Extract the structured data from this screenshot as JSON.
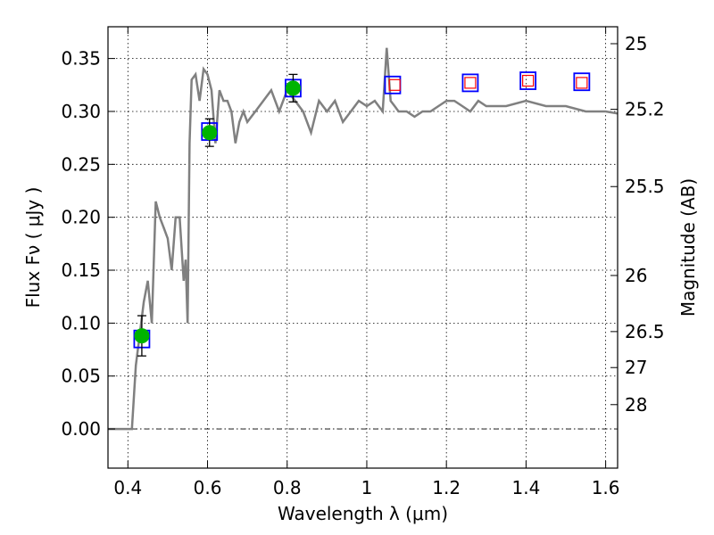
{
  "chart_data": {
    "type": "line",
    "xlabel": "Wavelength  λ (μm)",
    "ylabel": "Flux  Fν  ( μJy )",
    "y2label": "Magnitude (AB)",
    "xlim": [
      0.35,
      1.63
    ],
    "ylim": [
      -0.037,
      0.38
    ],
    "grid": true,
    "x_ticks": [
      {
        "value": 0.4,
        "label": "0.4"
      },
      {
        "value": 0.6,
        "label": "0.6"
      },
      {
        "value": 0.8,
        "label": "0.8"
      },
      {
        "value": 1.0,
        "label": "1"
      },
      {
        "value": 1.2,
        "label": "1.2"
      },
      {
        "value": 1.4,
        "label": "1.4"
      },
      {
        "value": 1.6,
        "label": "1.6"
      }
    ],
    "y_ticks": [
      {
        "value": 0.0,
        "label": "0.00"
      },
      {
        "value": 0.05,
        "label": "0.05"
      },
      {
        "value": 0.1,
        "label": "0.10"
      },
      {
        "value": 0.15,
        "label": "0.15"
      },
      {
        "value": 0.2,
        "label": "0.20"
      },
      {
        "value": 0.25,
        "label": "0.25"
      },
      {
        "value": 0.3,
        "label": "0.30"
      },
      {
        "value": 0.35,
        "label": "0.35"
      }
    ],
    "y2_ticks": [
      {
        "flux": 0.364,
        "label": "25"
      },
      {
        "flux": 0.302,
        "label": "25.2"
      },
      {
        "flux": 0.229,
        "label": "25.5"
      },
      {
        "flux": 0.145,
        "label": "26"
      },
      {
        "flux": 0.092,
        "label": "26.5"
      },
      {
        "flux": 0.058,
        "label": "27"
      },
      {
        "flux": 0.023,
        "label": "28"
      }
    ],
    "colors": {
      "model": "#808080",
      "detection": "#00b400",
      "model_band": "#0000ff",
      "upper": "#ff0000",
      "errorbar": "#000000",
      "zero_line": "#000000"
    },
    "model_spectrum": {
      "x": [
        0.35,
        0.4,
        0.41,
        0.42,
        0.43,
        0.44,
        0.45,
        0.46,
        0.47,
        0.48,
        0.49,
        0.5,
        0.51,
        0.52,
        0.53,
        0.54,
        0.545,
        0.55,
        0.555,
        0.56,
        0.57,
        0.58,
        0.59,
        0.6,
        0.61,
        0.62,
        0.63,
        0.64,
        0.65,
        0.66,
        0.67,
        0.68,
        0.69,
        0.7,
        0.72,
        0.74,
        0.76,
        0.78,
        0.8,
        0.82,
        0.84,
        0.86,
        0.88,
        0.9,
        0.92,
        0.94,
        0.96,
        0.98,
        1.0,
        1.02,
        1.04,
        1.05,
        1.06,
        1.07,
        1.08,
        1.1,
        1.12,
        1.14,
        1.16,
        1.18,
        1.2,
        1.22,
        1.24,
        1.26,
        1.28,
        1.3,
        1.35,
        1.4,
        1.45,
        1.5,
        1.55,
        1.6,
        1.63
      ],
      "y": [
        0.0,
        0.0,
        0.0,
        0.06,
        0.09,
        0.12,
        0.14,
        0.1,
        0.215,
        0.2,
        0.19,
        0.18,
        0.15,
        0.2,
        0.2,
        0.14,
        0.16,
        0.1,
        0.27,
        0.33,
        0.335,
        0.31,
        0.34,
        0.335,
        0.32,
        0.27,
        0.32,
        0.31,
        0.31,
        0.3,
        0.27,
        0.29,
        0.3,
        0.29,
        0.3,
        0.31,
        0.32,
        0.3,
        0.32,
        0.31,
        0.3,
        0.28,
        0.31,
        0.3,
        0.31,
        0.29,
        0.3,
        0.31,
        0.305,
        0.31,
        0.3,
        0.36,
        0.31,
        0.305,
        0.3,
        0.3,
        0.295,
        0.3,
        0.3,
        0.305,
        0.31,
        0.31,
        0.305,
        0.3,
        0.31,
        0.305,
        0.305,
        0.31,
        0.305,
        0.305,
        0.3,
        0.3,
        0.298
      ]
    },
    "series": [
      {
        "kind": "detection",
        "x": [
          0.435,
          0.605,
          0.815
        ],
        "y": [
          0.088,
          0.28,
          0.322
        ],
        "err": [
          0.019,
          0.013,
          0.013
        ]
      },
      {
        "kind": "model_band",
        "x": [
          0.435,
          0.605,
          0.815,
          1.065,
          1.26,
          1.405,
          1.54
        ],
        "y": [
          0.085,
          0.281,
          0.322,
          0.325,
          0.327,
          0.329,
          0.328
        ]
      },
      {
        "kind": "upper",
        "x": [
          1.07,
          1.26,
          1.405,
          1.54
        ],
        "y": [
          0.325,
          0.327,
          0.329,
          0.327
        ]
      }
    ]
  }
}
